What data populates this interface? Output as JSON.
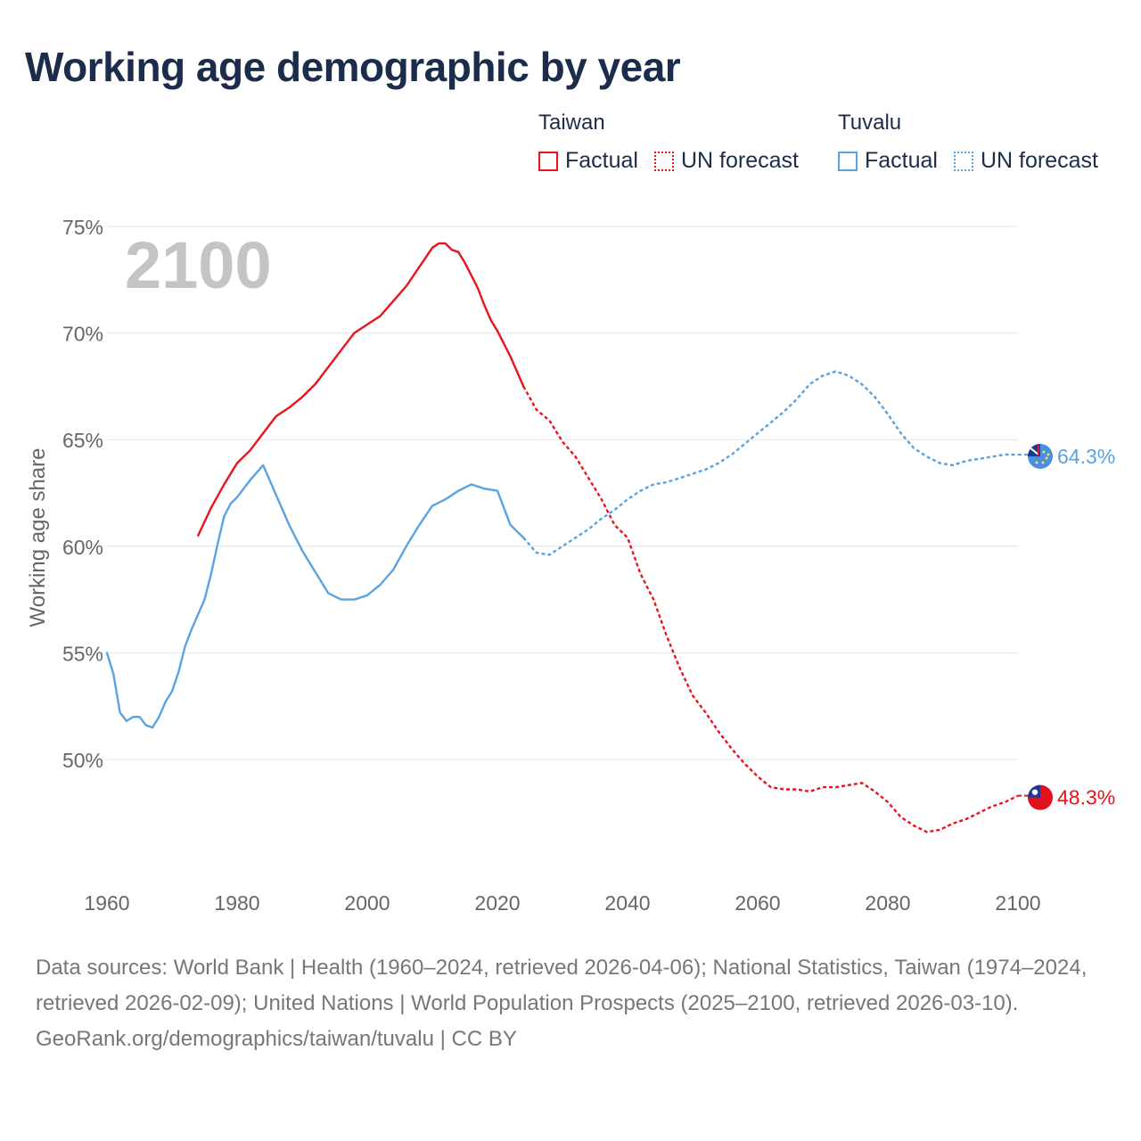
{
  "title": "Working age demographic by year",
  "legend": [
    {
      "group": "Taiwan",
      "color": "#e8141b",
      "items": [
        {
          "label": "Factual",
          "style": "solid"
        },
        {
          "label": "UN forecast",
          "style": "dotted"
        }
      ]
    },
    {
      "group": "Tuvalu",
      "color": "#5aa3e0",
      "items": [
        {
          "label": "Factual",
          "style": "solid"
        },
        {
          "label": "UN forecast",
          "style": "dotted"
        }
      ]
    }
  ],
  "chart_data": {
    "type": "line",
    "title": "Working age demographic by year",
    "ylabel": "Working age share",
    "xlabel": "",
    "xlim": [
      1960,
      2100
    ],
    "ylim": [
      45,
      75
    ],
    "x_ticks": [
      1960,
      1980,
      2000,
      2020,
      2040,
      2060,
      2080,
      2100
    ],
    "x_tick_labels": [
      "1960",
      "1980",
      "2000",
      "2020",
      "2040",
      "2060",
      "2080",
      "2100"
    ],
    "y_ticks": [
      50,
      55,
      60,
      65,
      70,
      75
    ],
    "y_tick_labels": [
      "50%",
      "55%",
      "60%",
      "65%",
      "70%",
      "75%"
    ],
    "year_watermark": "2100",
    "series": [
      {
        "name": "Taiwan",
        "color": "#e8141b",
        "end_label": "48.3%",
        "flag_icon": "taiwan-flag-icon",
        "factual": {
          "x": [
            1974,
            1976,
            1978,
            1980,
            1982,
            1984,
            1986,
            1988,
            1990,
            1992,
            1994,
            1996,
            1998,
            2000,
            2002,
            2004,
            2006,
            2008,
            2010,
            2011,
            2012,
            2013,
            2014,
            2015,
            2016,
            2017,
            2018,
            2019,
            2020,
            2022,
            2024
          ],
          "y": [
            60.5,
            61.8,
            62.9,
            63.9,
            64.5,
            65.3,
            66.1,
            66.5,
            67.0,
            67.6,
            68.4,
            69.2,
            70.0,
            70.4,
            70.8,
            71.5,
            72.2,
            73.1,
            74.0,
            74.2,
            74.2,
            73.9,
            73.8,
            73.3,
            72.7,
            72.1,
            71.3,
            70.6,
            70.1,
            68.9,
            67.5
          ]
        },
        "forecast": {
          "x": [
            2024,
            2026,
            2028,
            2030,
            2032,
            2034,
            2036,
            2038,
            2040,
            2042,
            2044,
            2046,
            2048,
            2050,
            2052,
            2054,
            2056,
            2058,
            2060,
            2062,
            2064,
            2066,
            2068,
            2070,
            2072,
            2074,
            2076,
            2078,
            2080,
            2082,
            2084,
            2086,
            2088,
            2090,
            2092,
            2094,
            2096,
            2098,
            2100
          ],
          "y": [
            67.5,
            66.4,
            65.9,
            64.9,
            64.2,
            63.2,
            62.2,
            61.0,
            60.4,
            58.7,
            57.5,
            55.8,
            54.3,
            53.0,
            52.2,
            51.3,
            50.5,
            49.8,
            49.2,
            48.7,
            48.6,
            48.6,
            48.5,
            48.7,
            48.7,
            48.8,
            48.9,
            48.5,
            48.0,
            47.3,
            46.9,
            46.6,
            46.7,
            47.0,
            47.2,
            47.5,
            47.8,
            48.0,
            48.3
          ]
        }
      },
      {
        "name": "Tuvalu",
        "color": "#5aa3e0",
        "end_label": "64.3%",
        "flag_icon": "tuvalu-flag-icon",
        "factual": {
          "x": [
            1960,
            1961,
            1962,
            1963,
            1964,
            1965,
            1966,
            1967,
            1968,
            1969,
            1970,
            1971,
            1972,
            1973,
            1974,
            1975,
            1976,
            1977,
            1978,
            1979,
            1980,
            1982,
            1984,
            1986,
            1988,
            1990,
            1992,
            1994,
            1996,
            1998,
            2000,
            2002,
            2004,
            2006,
            2008,
            2010,
            2012,
            2014,
            2016,
            2018,
            2020,
            2022,
            2024
          ],
          "y": [
            55.0,
            54.0,
            52.2,
            51.8,
            52.0,
            52.0,
            51.6,
            51.5,
            52.0,
            52.7,
            53.2,
            54.1,
            55.3,
            56.1,
            56.8,
            57.5,
            58.7,
            60.1,
            61.4,
            62.0,
            62.3,
            63.1,
            63.8,
            62.4,
            61.0,
            59.8,
            58.8,
            57.8,
            57.5,
            57.5,
            57.7,
            58.2,
            58.9,
            60.0,
            61.0,
            61.9,
            62.2,
            62.6,
            62.9,
            62.7,
            62.6,
            61.0,
            60.4
          ]
        },
        "forecast": {
          "x": [
            2024,
            2026,
            2028,
            2030,
            2032,
            2034,
            2036,
            2038,
            2040,
            2042,
            2044,
            2046,
            2048,
            2050,
            2052,
            2054,
            2056,
            2058,
            2060,
            2062,
            2064,
            2066,
            2068,
            2070,
            2072,
            2074,
            2076,
            2078,
            2080,
            2082,
            2084,
            2086,
            2088,
            2090,
            2092,
            2094,
            2096,
            2098,
            2100
          ],
          "y": [
            60.4,
            59.7,
            59.6,
            60.0,
            60.4,
            60.8,
            61.3,
            61.7,
            62.2,
            62.6,
            62.9,
            63.0,
            63.2,
            63.4,
            63.6,
            63.9,
            64.3,
            64.8,
            65.3,
            65.8,
            66.3,
            66.9,
            67.6,
            68.0,
            68.2,
            68.0,
            67.6,
            67.0,
            66.2,
            65.3,
            64.6,
            64.2,
            63.9,
            63.8,
            64.0,
            64.1,
            64.2,
            64.3,
            64.3
          ]
        }
      }
    ]
  },
  "footer": {
    "sources": "Data sources: World Bank | Health (1960–2024, retrieved 2026-04-06); National Statistics, Taiwan (1974–2024, retrieved 2026-02-09); United Nations | World Population Prospects (2025–2100, retrieved 2026-03-10).",
    "credit": "GeoRank.org/demographics/taiwan/tuvalu | CC BY"
  }
}
